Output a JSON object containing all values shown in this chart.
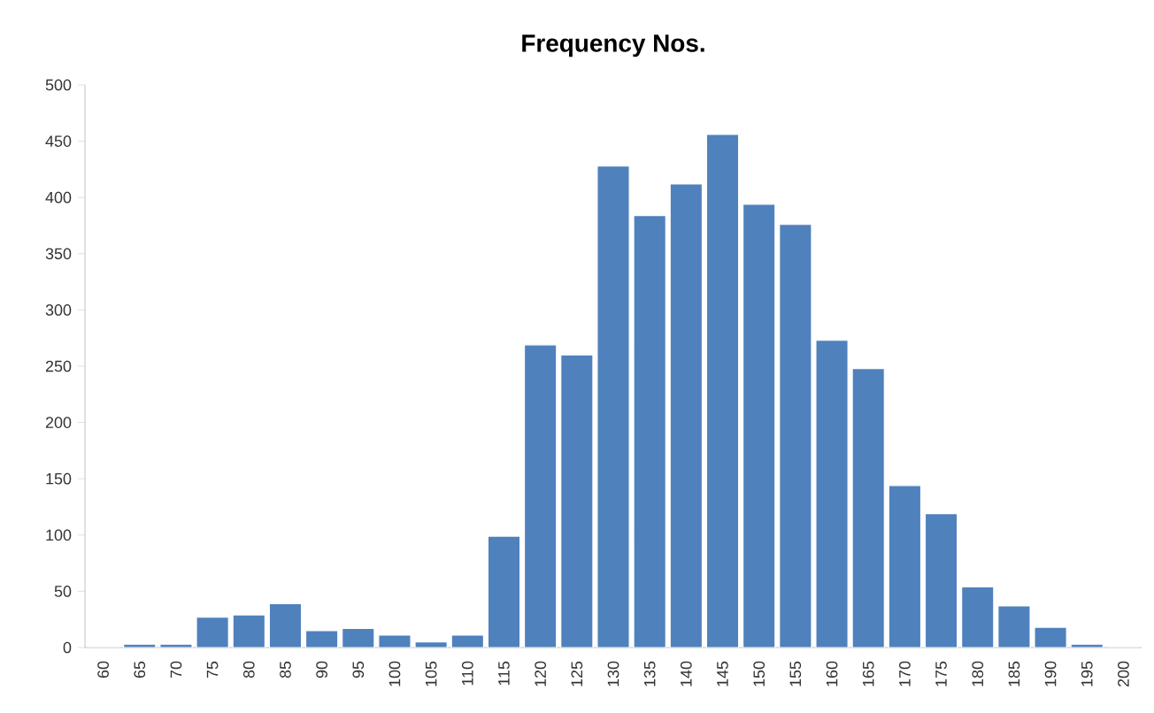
{
  "chart_data": {
    "type": "bar",
    "title": "Frequency Nos.",
    "categories": [
      "60",
      "65",
      "70",
      "75",
      "80",
      "85",
      "90",
      "95",
      "100",
      "105",
      "110",
      "115",
      "120",
      "125",
      "130",
      "135",
      "140",
      "145",
      "150",
      "155",
      "160",
      "165",
      "170",
      "175",
      "180",
      "185",
      "190",
      "195",
      "200"
    ],
    "values": [
      0,
      3,
      3,
      27,
      29,
      39,
      15,
      17,
      11,
      5,
      11,
      99,
      269,
      260,
      428,
      384,
      412,
      456,
      394,
      376,
      273,
      248,
      144,
      119,
      54,
      37,
      18,
      3,
      0
    ],
    "color": "#4f81bd",
    "ylim": [
      0,
      500
    ],
    "yticks": [
      0,
      50,
      100,
      150,
      200,
      250,
      300,
      350,
      400,
      450,
      500
    ]
  }
}
